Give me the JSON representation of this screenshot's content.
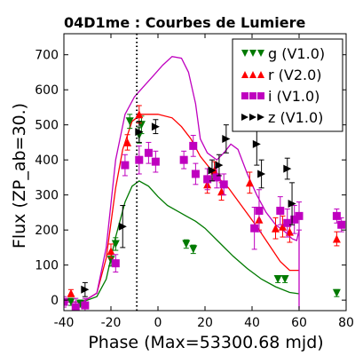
{
  "chart_data": {
    "type": "scatter",
    "title": "04D1me : Courbes de Lumiere",
    "xlabel": "Phase (Max=53300.68 mjd)",
    "ylabel": "Flux (ZP_ab=30.)",
    "xlim": [
      -40,
      80
    ],
    "ylim": [
      -30,
      760
    ],
    "xticks": [
      -40,
      -20,
      0,
      20,
      40,
      60,
      80
    ],
    "yticks": [
      0,
      100,
      200,
      300,
      400,
      500,
      600,
      700
    ],
    "xtick_labels": [
      "-40",
      "-20",
      "0",
      "20",
      "40",
      "60",
      "80"
    ],
    "ytick_labels": [
      "0",
      "100",
      "200",
      "300",
      "400",
      "500",
      "600",
      "700"
    ],
    "grid": false,
    "legend_position": "top-right",
    "vline": {
      "x": -9,
      "style": "dotted",
      "color": "#000000"
    },
    "series": [
      {
        "name": "g (V1.0)",
        "color": "#007a00",
        "marker": "triangle-down",
        "points": [
          {
            "x": -37,
            "y": -5,
            "err": 10
          },
          {
            "x": -33,
            "y": -10,
            "err": 10
          },
          {
            "x": -20,
            "y": 115,
            "err": 18
          },
          {
            "x": -18,
            "y": 160,
            "err": 18
          },
          {
            "x": -12,
            "y": 510,
            "err": 20
          },
          {
            "x": -8,
            "y": 470,
            "err": 22
          },
          {
            "x": -7,
            "y": 500,
            "err": 25
          },
          {
            "x": 12,
            "y": 160,
            "err": 12
          },
          {
            "x": 15,
            "y": 145,
            "err": 12
          },
          {
            "x": 51,
            "y": 60,
            "err": 10
          },
          {
            "x": 54,
            "y": 60,
            "err": 10
          },
          {
            "x": 76,
            "y": 20,
            "err": 10
          }
        ],
        "model": [
          [
            -40,
            -5
          ],
          [
            -32,
            -5
          ],
          [
            -26,
            10
          ],
          [
            -22,
            60
          ],
          [
            -18,
            180
          ],
          [
            -14,
            280
          ],
          [
            -11,
            325
          ],
          [
            -8,
            340
          ],
          [
            -4,
            325
          ],
          [
            0,
            295
          ],
          [
            4,
            270
          ],
          [
            8,
            255
          ],
          [
            12,
            240
          ],
          [
            16,
            225
          ],
          [
            20,
            205
          ],
          [
            26,
            165
          ],
          [
            32,
            125
          ],
          [
            38,
            90
          ],
          [
            44,
            60
          ],
          [
            50,
            38
          ],
          [
            56,
            22
          ],
          [
            60,
            18
          ]
        ]
      },
      {
        "name": "r (V2.0)",
        "color": "#ff0000",
        "marker": "triangle-up",
        "points": [
          {
            "x": -37,
            "y": 20,
            "err": 10
          },
          {
            "x": -20,
            "y": 140,
            "err": 20
          },
          {
            "x": -13,
            "y": 450,
            "err": 22
          },
          {
            "x": -8,
            "y": 530,
            "err": 25
          },
          {
            "x": 21,
            "y": 330,
            "err": 25
          },
          {
            "x": 24,
            "y": 370,
            "err": 25
          },
          {
            "x": 27,
            "y": 310,
            "err": 25
          },
          {
            "x": 39,
            "y": 335,
            "err": 30
          },
          {
            "x": 43,
            "y": 230,
            "err": 30
          },
          {
            "x": 50,
            "y": 205,
            "err": 30
          },
          {
            "x": 53,
            "y": 210,
            "err": 30
          },
          {
            "x": 56,
            "y": 195,
            "err": 30
          },
          {
            "x": 76,
            "y": 175,
            "err": 20
          }
        ],
        "model": [
          [
            -40,
            -5
          ],
          [
            -32,
            -5
          ],
          [
            -26,
            20
          ],
          [
            -22,
            120
          ],
          [
            -18,
            320
          ],
          [
            -15,
            430
          ],
          [
            -11,
            510
          ],
          [
            -7,
            530
          ],
          [
            0,
            530
          ],
          [
            6,
            520
          ],
          [
            10,
            495
          ],
          [
            14,
            460
          ],
          [
            18,
            410
          ],
          [
            24,
            360
          ],
          [
            30,
            320
          ],
          [
            36,
            265
          ],
          [
            42,
            210
          ],
          [
            48,
            150
          ],
          [
            52,
            110
          ],
          [
            56,
            85
          ],
          [
            60,
            85
          ]
        ]
      },
      {
        "name": "i (V1.0)",
        "color": "#bf00bf",
        "marker": "square",
        "points": [
          {
            "x": -40,
            "y": -5,
            "err": 15
          },
          {
            "x": -35,
            "y": -20,
            "err": 25
          },
          {
            "x": -31,
            "y": -15,
            "err": 20
          },
          {
            "x": -18,
            "y": 105,
            "err": 25
          },
          {
            "x": -14,
            "y": 385,
            "err": 30
          },
          {
            "x": -8,
            "y": 400,
            "err": 40
          },
          {
            "x": -4,
            "y": 420,
            "err": 30
          },
          {
            "x": -1,
            "y": 395,
            "err": 30
          },
          {
            "x": 11,
            "y": 400,
            "err": 25
          },
          {
            "x": 15,
            "y": 440,
            "err": 30
          },
          {
            "x": 16,
            "y": 360,
            "err": 30
          },
          {
            "x": 21,
            "y": 345,
            "err": 30
          },
          {
            "x": 25,
            "y": 350,
            "err": 30
          },
          {
            "x": 28,
            "y": 330,
            "err": 30
          },
          {
            "x": 41,
            "y": 205,
            "err": 60
          },
          {
            "x": 43,
            "y": 255,
            "err": 60
          },
          {
            "x": 52,
            "y": 255,
            "err": 40
          },
          {
            "x": 55,
            "y": 220,
            "err": 40
          },
          {
            "x": 58,
            "y": 230,
            "err": 40
          },
          {
            "x": 60,
            "y": 240,
            "err": 40
          },
          {
            "x": 76,
            "y": 240,
            "err": 20
          },
          {
            "x": 78,
            "y": 215,
            "err": 20
          }
        ],
        "model": [
          [
            -40,
            -5
          ],
          [
            -32,
            -5
          ],
          [
            -26,
            20
          ],
          [
            -22,
            150
          ],
          [
            -18,
            400
          ],
          [
            -14,
            530
          ],
          [
            -10,
            580
          ],
          [
            -6,
            610
          ],
          [
            -2,
            640
          ],
          [
            2,
            670
          ],
          [
            6,
            695
          ],
          [
            10,
            690
          ],
          [
            13,
            650
          ],
          [
            16,
            560
          ],
          [
            18,
            460
          ],
          [
            21,
            420
          ],
          [
            25,
            400
          ],
          [
            28,
            420
          ],
          [
            31,
            445
          ],
          [
            34,
            430
          ],
          [
            38,
            360
          ],
          [
            42,
            300
          ],
          [
            46,
            250
          ],
          [
            50,
            215
          ],
          [
            54,
            195
          ],
          [
            57,
            175
          ],
          [
            59,
            170
          ],
          [
            60,
            200
          ],
          [
            60,
            -25
          ]
        ]
      },
      {
        "name": "z (V1.0)",
        "color": "#000000",
        "marker": "triangle-right",
        "points": [
          {
            "x": -31,
            "y": 30,
            "err": 20
          },
          {
            "x": -15,
            "y": 210,
            "err": 60
          },
          {
            "x": -8,
            "y": 480,
            "err": 30
          },
          {
            "x": -1,
            "y": 495,
            "err": 20
          },
          {
            "x": 23,
            "y": 370,
            "err": 30
          },
          {
            "x": 26,
            "y": 385,
            "err": 30
          },
          {
            "x": 29,
            "y": 460,
            "err": 40
          },
          {
            "x": 42,
            "y": 445,
            "err": 60
          },
          {
            "x": 44,
            "y": 360,
            "err": 40
          },
          {
            "x": 55,
            "y": 375,
            "err": 30
          },
          {
            "x": 57,
            "y": 275,
            "err": 60
          }
        ],
        "model": []
      }
    ]
  }
}
